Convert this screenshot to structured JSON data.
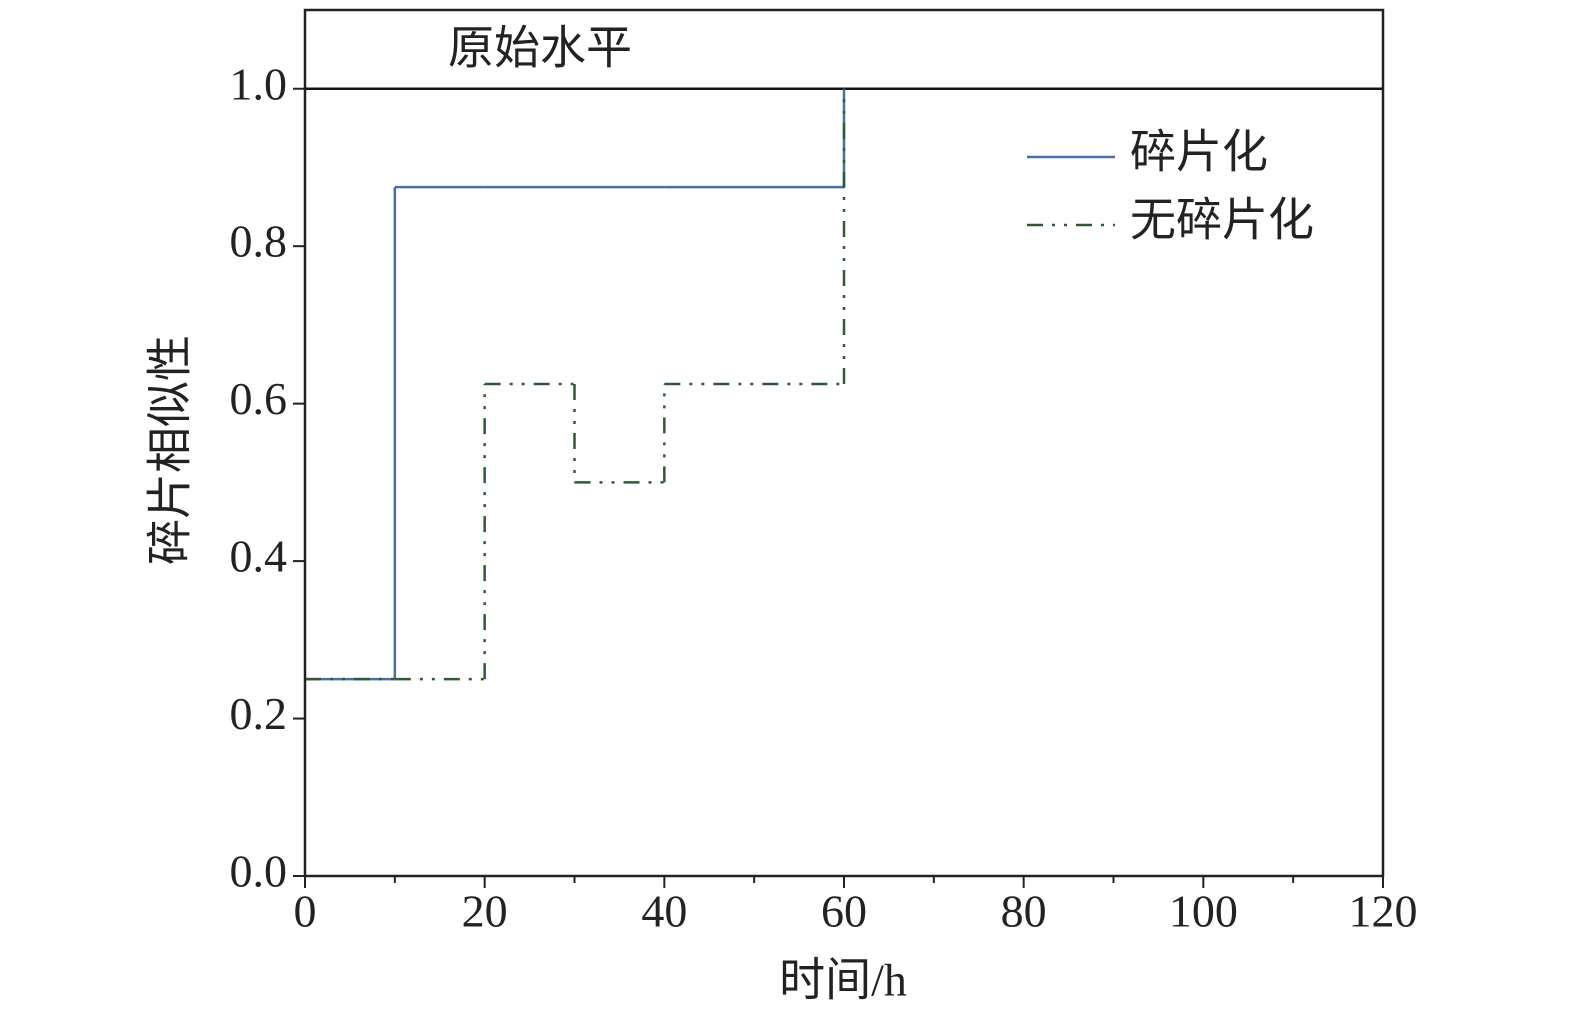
{
  "chart_data": {
    "type": "step",
    "xlabel": "时间/h",
    "ylabel": "碎片相似性",
    "x": [
      0,
      10,
      20,
      30,
      40,
      60
    ],
    "series": [
      {
        "name": "碎片化",
        "color": "#4a6ea8",
        "dash": "solid",
        "values": [
          0.25,
          0.875,
          0.875,
          0.875,
          0.875,
          1.0
        ]
      },
      {
        "name": "无碎片化",
        "color": "#2f5a36",
        "dash": "dashdotdot",
        "values": [
          0.25,
          0.25,
          0.625,
          0.5,
          0.625,
          1.0
        ]
      }
    ],
    "reference": {
      "value": 1,
      "label": "原始水平"
    },
    "xlim": [
      0,
      120
    ],
    "xticks": [
      0,
      20,
      40,
      60,
      80,
      100,
      120
    ],
    "xminorticks": [
      10,
      30,
      50,
      70,
      90,
      110
    ],
    "ylim": [
      0,
      1.1
    ],
    "yticks": [
      {
        "value": 0,
        "label": "0.0"
      },
      0.2,
      0.4,
      0.6,
      0.8,
      {
        "value": 1,
        "label": "1.0"
      }
    ],
    "legend": "upper right"
  }
}
